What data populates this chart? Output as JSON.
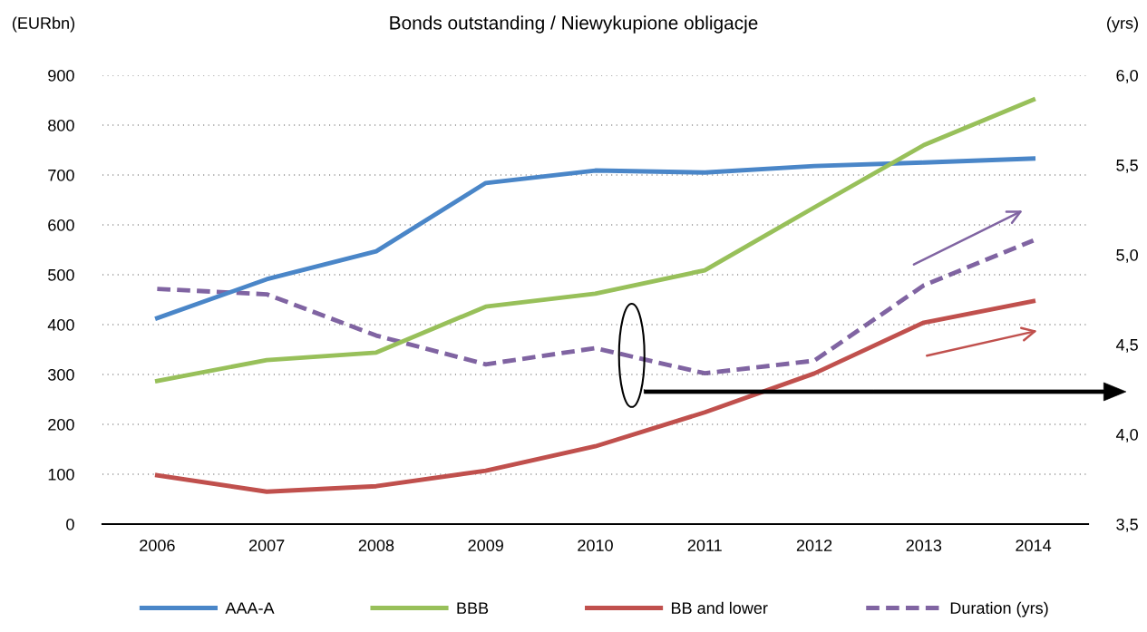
{
  "chart_data": {
    "type": "line",
    "title": "Bonds outstanding / Niewykupione obligacje",
    "ylabel": "(EURbn)",
    "y2label": "(yrs)",
    "categories": [
      "2006",
      "2007",
      "2008",
      "2009",
      "2010",
      "2011",
      "2012",
      "2013",
      "2014"
    ],
    "series": [
      {
        "name": "AAA-A",
        "color": "#4a86c8",
        "values": [
          413,
          491,
          547,
          684,
          709,
          705,
          718,
          725,
          733
        ]
      },
      {
        "name": "BBB",
        "color": "#98c05a",
        "values": [
          287,
          329,
          344,
          436,
          462,
          509,
          635,
          760,
          851
        ]
      },
      {
        "name": "BB and lower",
        "color": "#c0504d",
        "values": [
          98,
          65,
          76,
          107,
          156,
          224,
          302,
          404,
          447
        ]
      },
      {
        "name": "Duration (yrs)",
        "color": "#8064a2",
        "axis": "y2",
        "line_style": "dashed",
        "values": [
          4.81,
          4.78,
          4.55,
          4.39,
          4.48,
          4.34,
          4.41,
          4.83,
          5.08
        ]
      }
    ],
    "ylim": [
      0,
      900
    ],
    "yticks": [
      0,
      100,
      200,
      300,
      400,
      500,
      600,
      700,
      800,
      900
    ],
    "y2lim": [
      3.5,
      6.0
    ],
    "y2ticks": [
      {
        "value": 3.5,
        "label": "3,5"
      },
      {
        "value": 4.0,
        "label": "4,0"
      },
      {
        "value": 4.5,
        "label": "4,5"
      },
      {
        "value": 5.0,
        "label": "5,0"
      },
      {
        "value": 5.5,
        "label": "5,5"
      },
      {
        "value": 6.0,
        "label": "6,0"
      }
    ],
    "grid": "y",
    "legend": "bottom",
    "line_style": "solid",
    "marker": "none"
  }
}
